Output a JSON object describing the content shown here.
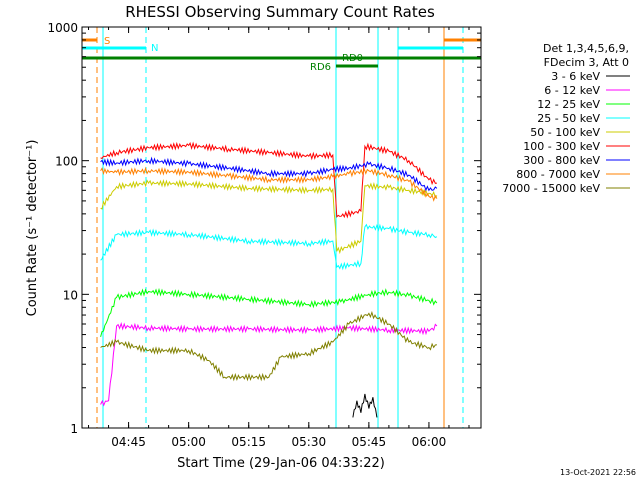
{
  "chart_data": {
    "type": "line",
    "title": "RHESSI Observing Summary Count Rates",
    "xlabel": "Start Time (29-Jan-06 04:33:22)",
    "ylabel": "Count Rate (s⁻¹ detector⁻¹)",
    "x_scale": "time",
    "y_scale": "log",
    "xlim": [
      "04:33:22",
      "06:13:00"
    ],
    "ylim": [
      1,
      1000
    ],
    "x_ticks": [
      "04:45",
      "05:00",
      "05:15",
      "05:30",
      "05:45",
      "06:00"
    ],
    "y_ticks": [
      "1",
      "10",
      "100",
      "1000"
    ],
    "legend": {
      "placement": "right",
      "header": [
        "Det 1,3,4,5,6,9,",
        "FDecim 3, Att 0"
      ]
    },
    "series": [
      {
        "name": "3 - 6 keV",
        "color": "#000000",
        "points": [
          [
            "05:41",
            "1.2"
          ],
          [
            "05:42",
            "1.6"
          ],
          [
            "05:43",
            "1.3"
          ],
          [
            "05:44",
            "1.8"
          ],
          [
            "05:45",
            "1.4"
          ],
          [
            "05:46",
            "1.7"
          ],
          [
            "05:47",
            "1.2"
          ]
        ]
      },
      {
        "name": "6 - 12 keV",
        "color": "#ff00ff",
        "points": [
          [
            "04:38",
            "1.5"
          ],
          [
            "04:40",
            "1.6"
          ],
          [
            "04:42",
            "5.8"
          ],
          [
            "04:50",
            "5.6"
          ],
          [
            "05:00",
            "5.5"
          ],
          [
            "05:15",
            "5.5"
          ],
          [
            "05:30",
            "5.4"
          ],
          [
            "05:40",
            "5.6"
          ],
          [
            "05:50",
            "5.4"
          ],
          [
            "06:00",
            "5.3"
          ],
          [
            "06:02",
            "5.8"
          ]
        ]
      },
      {
        "name": "12 - 25 keV",
        "color": "#00ff00",
        "points": [
          [
            "04:38",
            "4.8"
          ],
          [
            "04:42",
            "9.5"
          ],
          [
            "04:50",
            "10.5"
          ],
          [
            "05:00",
            "10.0"
          ],
          [
            "05:15",
            "9.2"
          ],
          [
            "05:30",
            "8.4"
          ],
          [
            "05:38",
            "8.8"
          ],
          [
            "05:45",
            "10.0"
          ],
          [
            "05:50",
            "10.4"
          ],
          [
            "05:55",
            "9.8"
          ],
          [
            "06:00",
            "9.0"
          ],
          [
            "06:02",
            "8.6"
          ]
        ]
      },
      {
        "name": "25 - 50 keV",
        "color": "#00ffff",
        "points": [
          [
            "04:38",
            "18"
          ],
          [
            "04:42",
            "28"
          ],
          [
            "04:50",
            "29"
          ],
          [
            "05:00",
            "28"
          ],
          [
            "05:15",
            "25"
          ],
          [
            "05:30",
            "24"
          ],
          [
            "05:36",
            "25"
          ],
          [
            "05:37",
            "16"
          ],
          [
            "05:43",
            "17"
          ],
          [
            "05:44",
            "32"
          ],
          [
            "05:50",
            "31"
          ],
          [
            "05:55",
            "29"
          ],
          [
            "06:00",
            "28"
          ],
          [
            "06:02",
            "27"
          ]
        ]
      },
      {
        "name": "50 - 100 keV",
        "color": "#cccc00",
        "points": [
          [
            "04:38",
            "44"
          ],
          [
            "04:42",
            "64"
          ],
          [
            "04:50",
            "68"
          ],
          [
            "05:00",
            "67"
          ],
          [
            "05:15",
            "62"
          ],
          [
            "05:30",
            "60"
          ],
          [
            "05:36",
            "61"
          ],
          [
            "05:37",
            "21"
          ],
          [
            "05:43",
            "25"
          ],
          [
            "05:44",
            "65"
          ],
          [
            "05:50",
            "63"
          ],
          [
            "05:55",
            "60"
          ],
          [
            "06:00",
            "57"
          ],
          [
            "06:02",
            "55"
          ]
        ]
      },
      {
        "name": "100 - 300 keV",
        "color": "#ff0000",
        "points": [
          [
            "04:38",
            "105"
          ],
          [
            "04:42",
            "115"
          ],
          [
            "04:50",
            "125"
          ],
          [
            "05:00",
            "130"
          ],
          [
            "05:10",
            "122"
          ],
          [
            "05:20",
            "115"
          ],
          [
            "05:30",
            "108"
          ],
          [
            "05:36",
            "110"
          ],
          [
            "05:37",
            "38"
          ],
          [
            "05:43",
            "42"
          ],
          [
            "05:44",
            "128"
          ],
          [
            "05:50",
            "118"
          ],
          [
            "05:55",
            "100"
          ],
          [
            "06:00",
            "72"
          ],
          [
            "06:02",
            "68"
          ]
        ]
      },
      {
        "name": "300 - 800 keV",
        "color": "#0000ff",
        "points": [
          [
            "04:38",
            "98"
          ],
          [
            "04:42",
            "96"
          ],
          [
            "04:50",
            "100"
          ],
          [
            "05:00",
            "95"
          ],
          [
            "05:10",
            "88"
          ],
          [
            "05:20",
            "80"
          ],
          [
            "05:30",
            "80"
          ],
          [
            "05:36",
            "86"
          ],
          [
            "05:40",
            "88"
          ],
          [
            "05:45",
            "94"
          ],
          [
            "05:50",
            "88"
          ],
          [
            "05:55",
            "78"
          ],
          [
            "06:00",
            "60"
          ],
          [
            "06:02",
            "62"
          ]
        ]
      },
      {
        "name": "800 - 7000 keV",
        "color": "#ff8000",
        "points": [
          [
            "04:38",
            "84"
          ],
          [
            "04:42",
            "82"
          ],
          [
            "04:50",
            "84"
          ],
          [
            "05:00",
            "82"
          ],
          [
            "05:10",
            "77"
          ],
          [
            "05:20",
            "72"
          ],
          [
            "05:30",
            "72"
          ],
          [
            "05:36",
            "76"
          ],
          [
            "05:40",
            "80"
          ],
          [
            "05:45",
            "84"
          ],
          [
            "05:50",
            "78"
          ],
          [
            "05:55",
            "70"
          ],
          [
            "06:00",
            "54"
          ],
          [
            "06:02",
            "52"
          ]
        ]
      },
      {
        "name": "7000 - 15000 keV",
        "color": "#808000",
        "points": [
          [
            "04:38",
            "4.0"
          ],
          [
            "04:42",
            "4.4"
          ],
          [
            "04:50",
            "3.8"
          ],
          [
            "05:00",
            "3.8"
          ],
          [
            "05:05",
            "3.2"
          ],
          [
            "05:09",
            "2.4"
          ],
          [
            "05:20",
            "2.4"
          ],
          [
            "05:23",
            "3.4"
          ],
          [
            "05:30",
            "3.6"
          ],
          [
            "05:36",
            "4.4"
          ],
          [
            "05:40",
            "6.0"
          ],
          [
            "05:45",
            "7.2"
          ],
          [
            "05:50",
            "6.0"
          ],
          [
            "05:55",
            "4.4"
          ],
          [
            "06:00",
            "4.0"
          ],
          [
            "06:02",
            "4.2"
          ]
        ]
      }
    ],
    "annotations": {
      "markers": [
        {
          "label": "S",
          "color": "#ff8000"
        },
        {
          "label": "N",
          "color": "#00ffff"
        },
        {
          "label": "RD0",
          "color": "#008000"
        },
        {
          "label": "RD6",
          "color": "#008000"
        }
      ]
    }
  },
  "footer": {
    "timestamp": "13-Oct-2021 22:56"
  }
}
